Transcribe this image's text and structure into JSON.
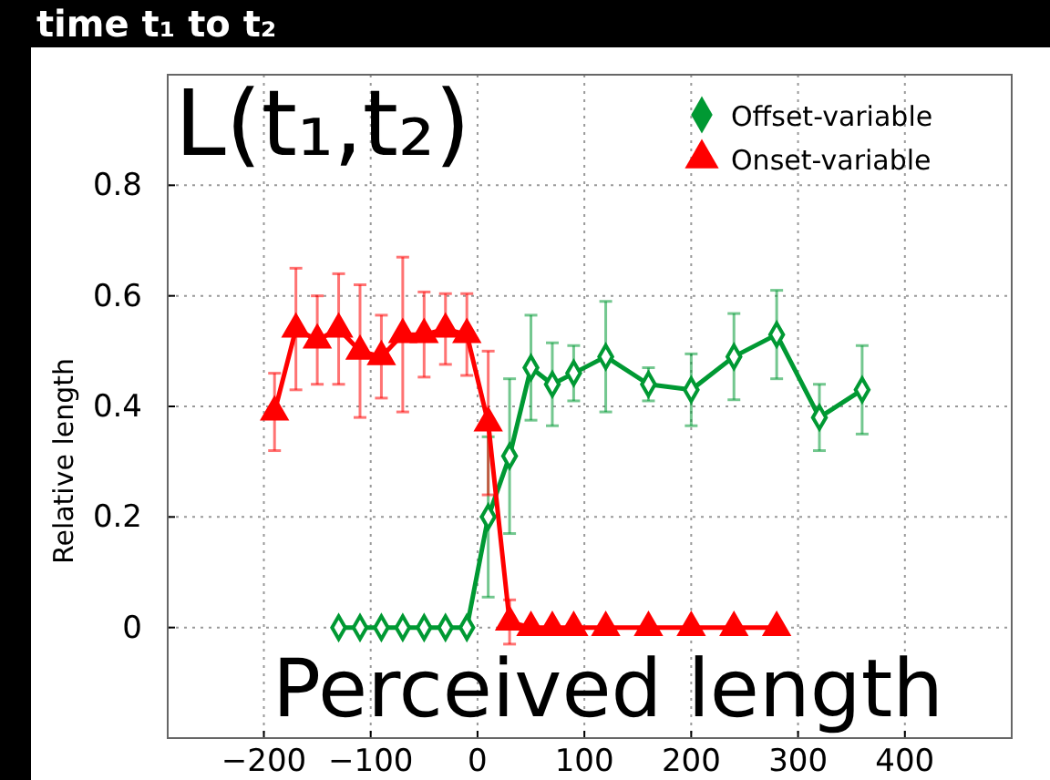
{
  "chart_data": {
    "type": "line",
    "title": "time t₁ to t₂",
    "ylabel": "Relative length",
    "annotations": [
      "L(t₁,t₂)",
      "Perceived length"
    ],
    "xlim": [
      -290,
      500
    ],
    "ylim": [
      -0.2,
      1.0
    ],
    "xticks": [
      {
        "value": -200,
        "label": "−200"
      },
      {
        "value": -100,
        "label": "−100"
      },
      0,
      100,
      200,
      300,
      400
    ],
    "yticks": [
      0,
      0.2,
      0.4,
      0.6,
      0.8
    ],
    "grid": true,
    "legend": "top right",
    "line_style": "solid",
    "series": [
      {
        "name": "Offset-variable",
        "color": "#009933",
        "marker": "diamond",
        "x": [
          -130,
          -110,
          -90,
          -70,
          -50,
          -30,
          -10,
          10,
          30,
          50,
          70,
          90,
          120,
          160,
          200,
          240,
          280,
          320,
          360
        ],
        "values": [
          0,
          0,
          0,
          0,
          0,
          0,
          0,
          0.2,
          0.31,
          0.47,
          0.44,
          0.46,
          0.49,
          0.44,
          0.43,
          0.49,
          0.53,
          0.38,
          0.43
        ],
        "errors": [
          null,
          null,
          null,
          null,
          null,
          null,
          null,
          0.145,
          0.14,
          0.095,
          0.075,
          0.05,
          0.1,
          0.03,
          0.065,
          0.078,
          0.08,
          0.06,
          0.08
        ]
      },
      {
        "name": "Onset-variable",
        "color": "#ff0000",
        "marker": "triangle",
        "x": [
          -190,
          -170,
          -150,
          -130,
          -110,
          -90,
          -70,
          -50,
          -30,
          -10,
          10,
          30,
          50,
          70,
          90,
          120,
          160,
          200,
          240,
          280
        ],
        "values": [
          0.39,
          0.54,
          0.52,
          0.54,
          0.5,
          0.49,
          0.53,
          0.53,
          0.54,
          0.53,
          0.37,
          0.01,
          0,
          0,
          0,
          0,
          0,
          0,
          0,
          0
        ],
        "errors": [
          0.07,
          0.11,
          0.08,
          0.1,
          0.12,
          0.075,
          0.14,
          0.077,
          0.064,
          0.074,
          0.13,
          0.04,
          null,
          null,
          null,
          null,
          null,
          null,
          null,
          null
        ]
      }
    ]
  }
}
